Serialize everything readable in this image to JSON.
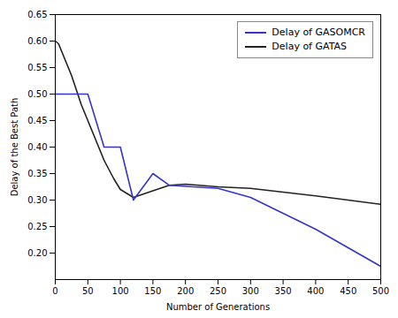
{
  "chart_data": {
    "type": "line",
    "xlabel": "Number of Generations",
    "ylabel": "Delay of the Best Path",
    "series": [
      {
        "name": "Delay of GASOMCR",
        "color": "#3535cc",
        "x": [
          0,
          50,
          50,
          75,
          100,
          120,
          150,
          175,
          250,
          300,
          400,
          500
        ],
        "values": [
          0.5,
          0.5,
          0.5,
          0.4,
          0.4,
          0.3,
          0.35,
          0.328,
          0.322,
          0.305,
          0.245,
          0.175
        ]
      },
      {
        "name": "Delay of GATAS",
        "color": "#222222",
        "x": [
          0,
          5,
          15,
          25,
          40,
          60,
          75,
          90,
          100,
          120,
          175,
          200,
          250,
          300,
          350,
          400,
          450,
          500
        ],
        "values": [
          0.6,
          0.595,
          0.565,
          0.535,
          0.48,
          0.42,
          0.375,
          0.34,
          0.32,
          0.305,
          0.328,
          0.33,
          0.325,
          0.322,
          0.315,
          0.308,
          0.3,
          0.292
        ]
      }
    ],
    "xlim": [
      0,
      500
    ],
    "ylim": [
      0.15,
      0.65
    ],
    "xticks": [
      0,
      50,
      100,
      150,
      200,
      250,
      300,
      350,
      400,
      450,
      500
    ],
    "yticks": [
      {
        "value": 0.2,
        "label": "0.20"
      },
      0.25,
      {
        "value": 0.3,
        "label": "0.30"
      },
      0.35,
      {
        "value": 0.4,
        "label": "0.40"
      },
      0.45,
      {
        "value": 0.5,
        "label": "0.50"
      },
      0.55,
      {
        "value": 0.6,
        "label": "0.60"
      },
      0.65
    ],
    "legend": "upper right",
    "grid": false
  }
}
